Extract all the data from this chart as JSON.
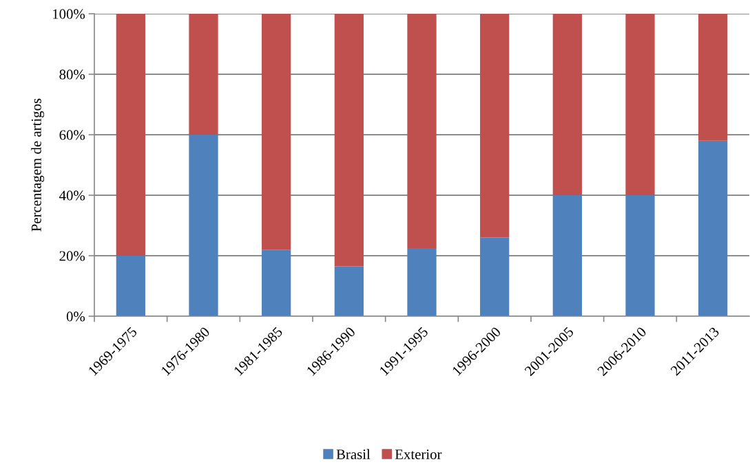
{
  "chart_data": {
    "type": "bar",
    "stacked": true,
    "ylabel": "Percentagem de artigos",
    "categories": [
      "1969-1975",
      "1976-1980",
      "1981-1985",
      "1986-1990",
      "1991-1995",
      "1996-2000",
      "2001-2005",
      "2006-2010",
      "2011-2013"
    ],
    "series": [
      {
        "name": "Brasil",
        "color": "#4f81bd",
        "values": [
          20,
          60,
          22,
          16.5,
          22.5,
          26,
          40,
          40,
          58
        ]
      },
      {
        "name": "Exterior",
        "color": "#c0504d",
        "values": [
          80,
          40,
          78,
          83.5,
          77.5,
          74,
          60,
          60,
          42
        ]
      }
    ],
    "ylim": [
      0,
      100
    ],
    "yticks": [
      {
        "value": 0,
        "label": "0%"
      },
      {
        "value": 20,
        "label": "20%"
      },
      {
        "value": 40,
        "label": "40%"
      },
      {
        "value": 60,
        "label": "60%"
      },
      {
        "value": 80,
        "label": "80%"
      },
      {
        "value": 100,
        "label": "100%"
      }
    ],
    "grid": "y",
    "legend": "bottom"
  }
}
